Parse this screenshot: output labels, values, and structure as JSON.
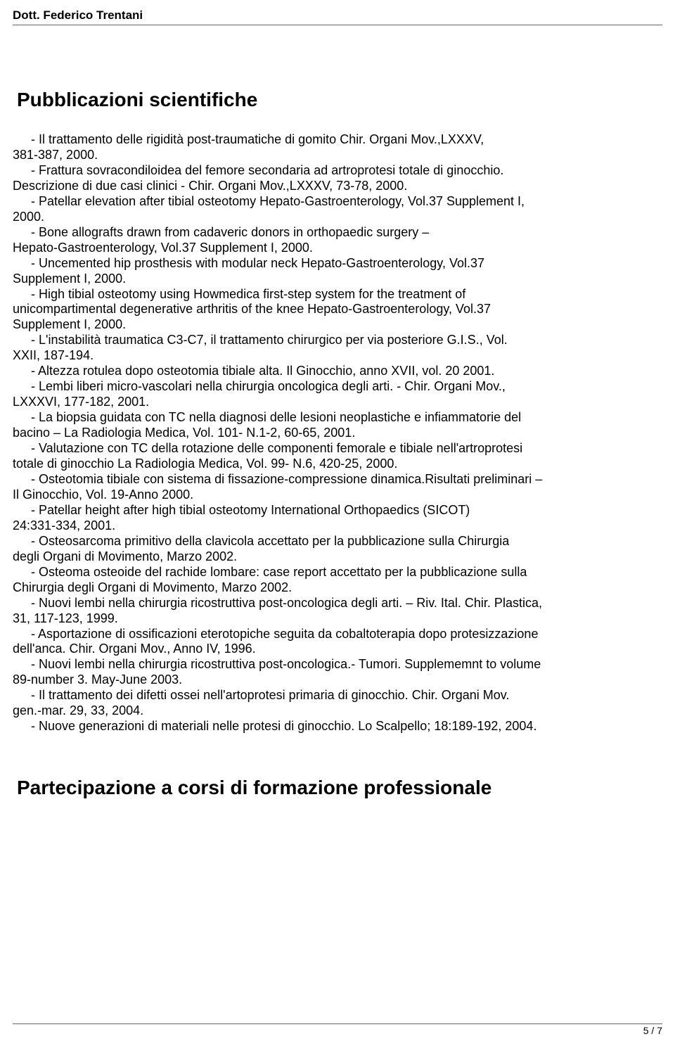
{
  "header": {
    "author": "Dott. Federico Trentani"
  },
  "section1": {
    "title": "Pubblicazioni scientifiche"
  },
  "pubs": [
    {
      "b": "-  Il trattamento delle rigidità post-traumatiche di gomito Chir. Organi Mov.,LXXXV,",
      "c": [
        "381-387, 2000."
      ]
    },
    {
      "b": "-  Frattura sovracondiloidea del femore secondaria ad artroprotesi totale di ginocchio.",
      "c": [
        "Descrizione di due casi clinici - Chir. Organi Mov.,LXXXV, 73-78, 2000."
      ]
    },
    {
      "b": "-  Patellar elevation after tibial osteotomy Hepato-Gastroenterology, Vol.37 Supplement I,",
      "c": [
        "2000."
      ]
    },
    {
      "b": "-  Bone allografts drawn from cadaveric donors in orthopaedic surgery –",
      "c": [
        "Hepato-Gastroenterology, Vol.37 Supplement I, 2000."
      ]
    },
    {
      "b": "-  Uncemented hip prosthesis with modular neck Hepato-Gastroenterology, Vol.37",
      "c": [
        "Supplement I, 2000."
      ]
    },
    {
      "b": "-  High tibial osteotomy using Howmedica first-step system for the treatment of",
      "c": [
        "unicompartimental degenerative arthritis of the knee Hepato-Gastroenterology, Vol.37",
        "Supplement I, 2000."
      ]
    },
    {
      "b": "-  L'instabilità traumatica C3-C7, il trattamento chirurgico per via posteriore G.I.S., Vol.",
      "c": [
        "XXII, 187-194."
      ]
    },
    {
      "b": "-  Altezza rotulea dopo osteotomia tibiale alta. Il Ginocchio, anno XVII, vol. 20 2001.",
      "c": []
    },
    {
      "b": "-  Lembi liberi micro-vascolari nella chirurgia oncologica degli arti. - Chir. Organi Mov.,",
      "c": [
        "LXXXVI, 177-182, 2001."
      ]
    },
    {
      "b": "-  La biopsia guidata con TC nella diagnosi delle lesioni neoplastiche e infiammatorie del",
      "c": [
        "bacino – La Radiologia Medica, Vol. 101- N.1-2, 60-65, 2001."
      ]
    },
    {
      "b": "-  Valutazione con TC della rotazione delle componenti femorale e tibiale nell'artroprotesi",
      "c": [
        "totale di ginocchio La Radiologia Medica, Vol. 99- N.6, 420-25, 2000."
      ]
    },
    {
      "b": "-  Osteotomia tibiale con sistema di fissazione-compressione dinamica.Risultati preliminari –",
      "c": [
        "Il Ginocchio, Vol. 19-Anno 2000."
      ]
    },
    {
      "b": "-  Patellar height after high tibial osteotomy International Orthopaedics (SICOT)",
      "c": [
        "24:331-334, 2001."
      ]
    },
    {
      "b": "-  Osteosarcoma primitivo della clavicola accettato per la pubblicazione sulla Chirurgia",
      "c": [
        "degli Organi di Movimento, Marzo 2002."
      ]
    },
    {
      "b": "-  Osteoma osteoide del rachide lombare: case report accettato per la pubblicazione sulla",
      "c": [
        "Chirurgia degli Organi di Movimento, Marzo 2002."
      ]
    },
    {
      "b": "-  Nuovi lembi nella chirurgia ricostruttiva post-oncologica degli arti. – Riv. Ital. Chir. Plastica,",
      "c": [
        "31, 117-123, 1999."
      ]
    },
    {
      "b": "-  Asportazione di ossificazioni eterotopiche seguita da cobaltoterapia dopo protesizzazione",
      "c": [
        "dell'anca. Chir. Organi Mov., Anno IV, 1996."
      ]
    },
    {
      "b": "-  Nuovi lembi nella chirurgia ricostruttiva post-oncologica.- Tumori. Supplememnt to volume",
      "c": [
        "89-number 3. May-June 2003."
      ]
    },
    {
      "b": "-  Il trattamento dei difetti ossei nell'artoprotesi primaria di ginocchio. Chir. Organi Mov.",
      "c": [
        "gen.-mar. 29, 33, 2004."
      ]
    },
    {
      "b": "-  Nuove generazioni di materiali nelle protesi di ginocchio. Lo Scalpello; 18:189-192, 2004.",
      "c": []
    }
  ],
  "section2": {
    "title": "Partecipazione a corsi di formazione professionale"
  },
  "footer": {
    "page": "5 / 7"
  }
}
